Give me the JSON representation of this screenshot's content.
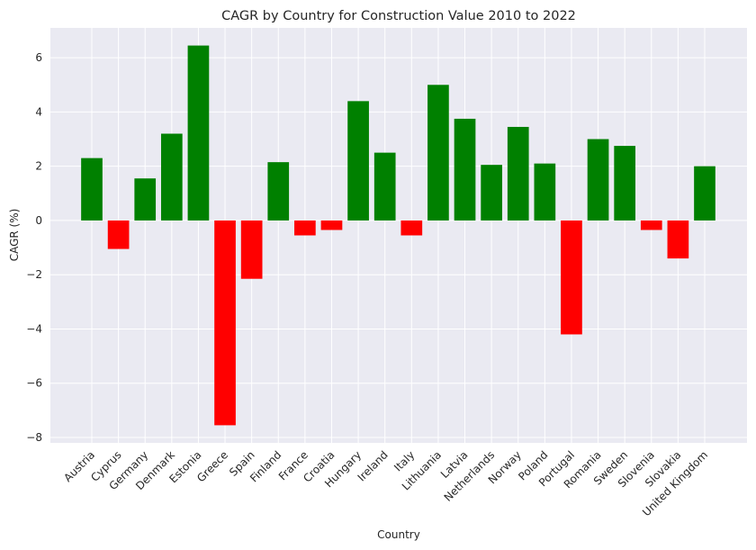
{
  "chart_data": {
    "type": "bar",
    "title": "CAGR by Country for Construction Value 2010 to 2022",
    "xlabel": "Country",
    "ylabel": "CAGR (%)",
    "categories": [
      "Austria",
      "Cyprus",
      "Germany",
      "Denmark",
      "Estonia",
      "Greece",
      "Spain",
      "Finland",
      "France",
      "Croatia",
      "Hungary",
      "Ireland",
      "Italy",
      "Lithuania",
      "Latvia",
      "Netherlands",
      "Norway",
      "Poland",
      "Portugal",
      "Romania",
      "Sweden",
      "Slovenia",
      "Slovakia",
      "United Kingdom"
    ],
    "values": [
      2.3,
      -1.05,
      1.55,
      3.2,
      6.45,
      -7.55,
      -2.15,
      2.15,
      -0.55,
      -0.35,
      4.4,
      2.5,
      -0.55,
      5.0,
      3.75,
      2.05,
      3.45,
      2.1,
      -4.2,
      3.0,
      2.75,
      -0.35,
      -1.4,
      2.0
    ],
    "ylim": [
      -8.2,
      7.1
    ],
    "yticks": [
      -8,
      -6,
      -4,
      -2,
      0,
      2,
      4,
      6
    ],
    "ytick_labels": [
      "−8",
      "−6",
      "−4",
      "−2",
      "0",
      "2",
      "4",
      "6"
    ],
    "grid": true,
    "colors": {
      "positive": "#008000",
      "negative": "#ff0000",
      "background": "#eaeaf2",
      "grid": "#ffffff"
    }
  }
}
